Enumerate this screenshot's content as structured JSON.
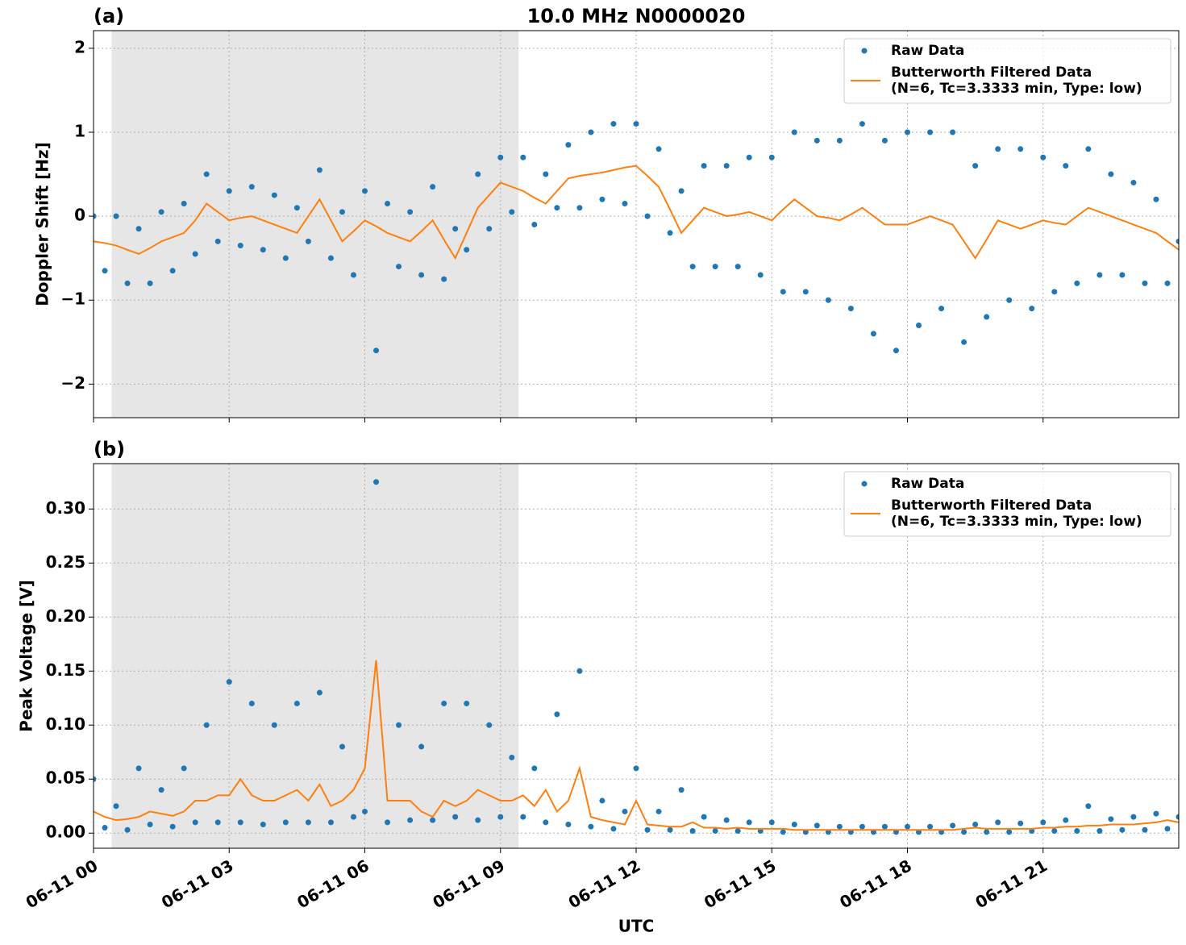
{
  "chart_data": [
    {
      "type": "scatter_line",
      "panel_label": "(a)",
      "title": "10.0 MHz N0000020",
      "ylabel": "Doppler Shift [Hz]",
      "xlim": [
        0,
        24
      ],
      "ylim": [
        -2.4,
        2.21
      ],
      "xticks": [
        0,
        3,
        6,
        9,
        12,
        15,
        18,
        21
      ],
      "yticks": [
        {
          "value": -2,
          "label": "−2"
        },
        {
          "value": -1,
          "label": "−1"
        },
        0,
        1,
        2
      ],
      "grid": true,
      "legend": "upper right",
      "shaded_span": [
        0.4,
        9.4
      ],
      "x": [
        0,
        0.25,
        0.5,
        0.75,
        1,
        1.25,
        1.5,
        1.75,
        2,
        2.25,
        2.5,
        2.75,
        3,
        3.25,
        3.5,
        3.75,
        4,
        4.25,
        4.5,
        4.75,
        5,
        5.25,
        5.5,
        5.75,
        6,
        6.25,
        6.5,
        6.75,
        7,
        7.25,
        7.5,
        7.75,
        8,
        8.25,
        8.5,
        8.75,
        9,
        9.25,
        9.5,
        9.75,
        10,
        10.25,
        10.5,
        10.75,
        11,
        11.25,
        11.5,
        11.75,
        12,
        12.25,
        12.5,
        12.75,
        13,
        13.25,
        13.5,
        13.75,
        14,
        14.25,
        14.5,
        14.75,
        15,
        15.25,
        15.5,
        15.75,
        16,
        16.25,
        16.5,
        16.75,
        17,
        17.25,
        17.5,
        17.75,
        18,
        18.25,
        18.5,
        18.75,
        19,
        19.25,
        19.5,
        19.75,
        20,
        20.25,
        20.5,
        20.75,
        21,
        21.25,
        21.5,
        21.75,
        22,
        22.25,
        22.5,
        22.75,
        23,
        23.25,
        23.5,
        23.75,
        24
      ],
      "series": [
        {
          "name": "Raw Data",
          "kind": "scatter",
          "color": "#1f77b4",
          "values": [
            0,
            -0.65,
            0,
            -0.8,
            -0.15,
            -0.8,
            0.05,
            -0.65,
            0.15,
            -0.45,
            0.5,
            -0.3,
            0.3,
            -0.35,
            0.35,
            -0.4,
            0.25,
            -0.5,
            0.1,
            -0.3,
            0.55,
            -0.5,
            0.05,
            -0.7,
            0.3,
            -1.6,
            0.15,
            -0.6,
            0.05,
            -0.7,
            0.35,
            -0.75,
            -0.15,
            -0.4,
            0.5,
            -0.15,
            0.7,
            0.05,
            0.7,
            -0.1,
            0.5,
            0.1,
            0.85,
            0.1,
            1.0,
            0.2,
            1.1,
            0.15,
            1.1,
            0,
            0.8,
            -0.2,
            0.3,
            -0.6,
            0.6,
            -0.6,
            0.6,
            -0.6,
            0.7,
            -0.7,
            0.7,
            -0.9,
            1.0,
            -0.9,
            0.9,
            -1.0,
            0.9,
            -1.1,
            1.1,
            -1.4,
            0.9,
            -1.6,
            1.0,
            -1.3,
            1.0,
            -1.1,
            1.0,
            -1.5,
            0.6,
            -1.2,
            0.8,
            -1.0,
            0.8,
            -1.1,
            0.7,
            -0.9,
            0.6,
            -0.8,
            0.8,
            -0.7,
            0.5,
            -0.7,
            0.4,
            -0.8,
            0.2,
            -0.8,
            -0.3
          ]
        },
        {
          "name": "Butterworth Filtered Data\n(N=6, Tc=3.3333 min, Type: low)",
          "kind": "line",
          "color": "#ff7f0e",
          "values": [
            -0.3,
            -0.32,
            -0.35,
            -0.4,
            -0.45,
            -0.38,
            -0.3,
            -0.25,
            -0.2,
            -0.05,
            0.15,
            0.05,
            -0.05,
            -0.02,
            0,
            -0.05,
            -0.1,
            -0.15,
            -0.2,
            0,
            0.2,
            -0.05,
            -0.3,
            -0.18,
            -0.05,
            -0.12,
            -0.2,
            -0.25,
            -0.3,
            -0.18,
            -0.05,
            -0.28,
            -0.5,
            -0.2,
            0.1,
            0.25,
            0.4,
            0.35,
            0.3,
            0.22,
            0.15,
            0.3,
            0.45,
            0.48,
            0.5,
            0.52,
            0.55,
            0.58,
            0.6,
            0.48,
            0.35,
            0.08,
            -0.2,
            -0.05,
            0.1,
            0.05,
            0,
            0.02,
            0.05,
            0,
            -0.05,
            0.08,
            0.2,
            0.1,
            0,
            -0.02,
            -0.05,
            0.02,
            0.1,
            0,
            -0.1,
            -0.1,
            -0.1,
            -0.05,
            0,
            -0.05,
            -0.1,
            -0.3,
            -0.5,
            -0.28,
            -0.05,
            -0.1,
            -0.15,
            -0.1,
            -0.05,
            -0.08,
            -0.1,
            0,
            0.1,
            0.05,
            0,
            -0.05,
            -0.1,
            -0.15,
            -0.2,
            -0.3,
            -0.4
          ]
        }
      ]
    },
    {
      "type": "scatter_line",
      "panel_label": "(b)",
      "ylabel": "Peak Voltage [V]",
      "xlabel": "UTC",
      "xlim": [
        0,
        24
      ],
      "ylim": [
        -0.014,
        0.342
      ],
      "xticks": [
        {
          "value": 0,
          "label": "06-11 00"
        },
        {
          "value": 3,
          "label": "06-11 03"
        },
        {
          "value": 6,
          "label": "06-11 06"
        },
        {
          "value": 9,
          "label": "06-11 09"
        },
        {
          "value": 12,
          "label": "06-11 12"
        },
        {
          "value": 15,
          "label": "06-11 15"
        },
        {
          "value": 18,
          "label": "06-11 18"
        },
        {
          "value": 21,
          "label": "06-11 21"
        }
      ],
      "yticks": [
        {
          "value": 0,
          "label": "0.00"
        },
        0.05,
        {
          "value": 0.1,
          "label": "0.10"
        },
        0.15,
        {
          "value": 0.2,
          "label": "0.20"
        },
        0.25,
        {
          "value": 0.3,
          "label": "0.30"
        }
      ],
      "grid": true,
      "legend": "upper right",
      "shaded_span": [
        0.4,
        9.4
      ],
      "x": [
        0,
        0.25,
        0.5,
        0.75,
        1,
        1.25,
        1.5,
        1.75,
        2,
        2.25,
        2.5,
        2.75,
        3,
        3.25,
        3.5,
        3.75,
        4,
        4.25,
        4.5,
        4.75,
        5,
        5.25,
        5.5,
        5.75,
        6,
        6.25,
        6.5,
        6.75,
        7,
        7.25,
        7.5,
        7.75,
        8,
        8.25,
        8.5,
        8.75,
        9,
        9.25,
        9.5,
        9.75,
        10,
        10.25,
        10.5,
        10.75,
        11,
        11.25,
        11.5,
        11.75,
        12,
        12.25,
        12.5,
        12.75,
        13,
        13.25,
        13.5,
        13.75,
        14,
        14.25,
        14.5,
        14.75,
        15,
        15.25,
        15.5,
        15.75,
        16,
        16.25,
        16.5,
        16.75,
        17,
        17.25,
        17.5,
        17.75,
        18,
        18.25,
        18.5,
        18.75,
        19,
        19.25,
        19.5,
        19.75,
        20,
        20.25,
        20.5,
        20.75,
        21,
        21.25,
        21.5,
        21.75,
        22,
        22.25,
        22.5,
        22.75,
        23,
        23.25,
        23.5,
        23.75,
        24
      ],
      "series": [
        {
          "name": "Raw Data",
          "kind": "scatter",
          "color": "#1f77b4",
          "values": [
            0.05,
            0.005,
            0.025,
            0.003,
            0.06,
            0.008,
            0.04,
            0.006,
            0.06,
            0.01,
            0.1,
            0.01,
            0.14,
            0.01,
            0.12,
            0.008,
            0.1,
            0.01,
            0.12,
            0.01,
            0.13,
            0.01,
            0.08,
            0.015,
            0.02,
            0.325,
            0.01,
            0.1,
            0.012,
            0.08,
            0.012,
            0.12,
            0.015,
            0.12,
            0.012,
            0.1,
            0.015,
            0.07,
            0.015,
            0.06,
            0.01,
            0.11,
            0.008,
            0.15,
            0.006,
            0.03,
            0.004,
            0.02,
            0.06,
            0.003,
            0.02,
            0.003,
            0.04,
            0.002,
            0.015,
            0.002,
            0.012,
            0.002,
            0.01,
            0.002,
            0.01,
            0.001,
            0.008,
            0.001,
            0.007,
            0.001,
            0.006,
            0.001,
            0.006,
            0.001,
            0.006,
            0.001,
            0.006,
            0.001,
            0.006,
            0.001,
            0.007,
            0.001,
            0.008,
            0.001,
            0.01,
            0.001,
            0.009,
            0.002,
            0.01,
            0.002,
            0.012,
            0.002,
            0.025,
            0.002,
            0.013,
            0.003,
            0.015,
            0.003,
            0.018,
            0.004,
            0.015
          ]
        },
        {
          "name": "Butterworth Filtered Data\n(N=6, Tc=3.3333 min, Type: low)",
          "kind": "line",
          "color": "#ff7f0e",
          "values": [
            0.02,
            0.015,
            0.012,
            0.013,
            0.015,
            0.02,
            0.018,
            0.016,
            0.02,
            0.03,
            0.03,
            0.035,
            0.035,
            0.05,
            0.035,
            0.03,
            0.03,
            0.035,
            0.04,
            0.03,
            0.045,
            0.025,
            0.03,
            0.04,
            0.06,
            0.16,
            0.03,
            0.03,
            0.03,
            0.02,
            0.015,
            0.03,
            0.025,
            0.03,
            0.04,
            0.035,
            0.03,
            0.03,
            0.035,
            0.025,
            0.04,
            0.02,
            0.03,
            0.06,
            0.015,
            0.012,
            0.01,
            0.008,
            0.03,
            0.008,
            0.007,
            0.006,
            0.006,
            0.01,
            0.005,
            0.005,
            0.004,
            0.005,
            0.004,
            0.004,
            0.004,
            0.004,
            0.003,
            0.003,
            0.003,
            0.003,
            0.003,
            0.003,
            0.003,
            0.003,
            0.003,
            0.003,
            0.003,
            0.003,
            0.003,
            0.003,
            0.003,
            0.004,
            0.005,
            0.004,
            0.004,
            0.004,
            0.004,
            0.004,
            0.005,
            0.005,
            0.006,
            0.006,
            0.007,
            0.007,
            0.008,
            0.008,
            0.008,
            0.009,
            0.01,
            0.012,
            0.01
          ]
        }
      ]
    }
  ]
}
